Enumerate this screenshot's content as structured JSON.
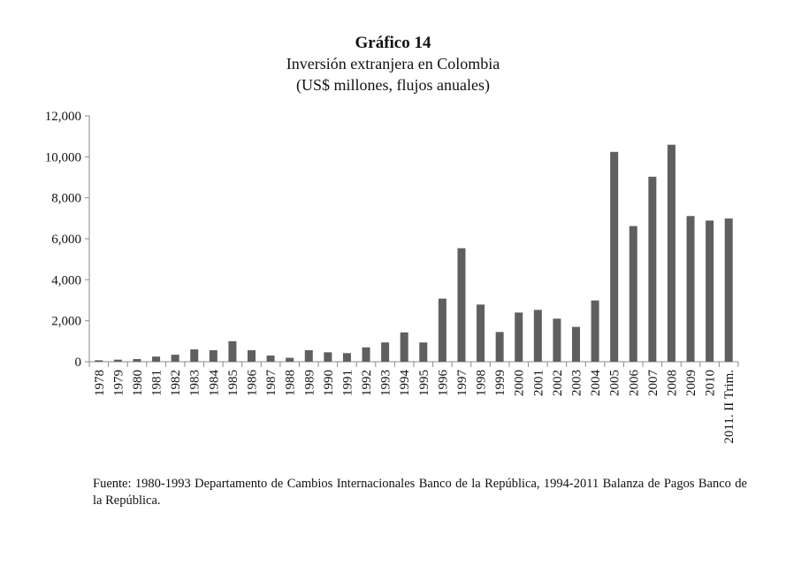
{
  "chart_data": {
    "type": "bar",
    "title": "Gráfico 14",
    "subtitle": "Inversión extranjera en Colombia",
    "subtitle2": "(US$ millones, flujos anuales)",
    "xlabel": "",
    "ylabel": "",
    "ylim": [
      0,
      12000
    ],
    "yticks": [
      0,
      2000,
      4000,
      6000,
      8000,
      10000,
      12000
    ],
    "ytick_labels": [
      "0",
      "2,000",
      "4,000",
      "6,000",
      "8,000",
      "10,000",
      "12,000"
    ],
    "grid": false,
    "legend": "none",
    "bar_color": "#5f5f5f",
    "categories": [
      "1978",
      "1979",
      "1980",
      "1981",
      "1982",
      "1983",
      "1984",
      "1985",
      "1986",
      "1987",
      "1988",
      "1989",
      "1990",
      "1991",
      "1992",
      "1993",
      "1994",
      "1995",
      "1996",
      "1997",
      "1998",
      "1999",
      "2000",
      "2001",
      "2002",
      "2003",
      "2004",
      "2005",
      "2006",
      "2007",
      "2008",
      "2009",
      "2010",
      "2011. II Trim."
    ],
    "values": [
      70,
      100,
      130,
      250,
      340,
      600,
      560,
      1000,
      560,
      300,
      190,
      560,
      460,
      420,
      700,
      940,
      1430,
      940,
      3080,
      5540,
      2790,
      1450,
      2400,
      2530,
      2100,
      1700,
      2990,
      10240,
      6620,
      9030,
      10590,
      7110,
      6890,
      6990
    ]
  },
  "source": "Fuente: 1980-1993 Departamento de Cambios Internacionales Banco de la República, 1994-2011 Balanza de Pagos Banco de la República."
}
